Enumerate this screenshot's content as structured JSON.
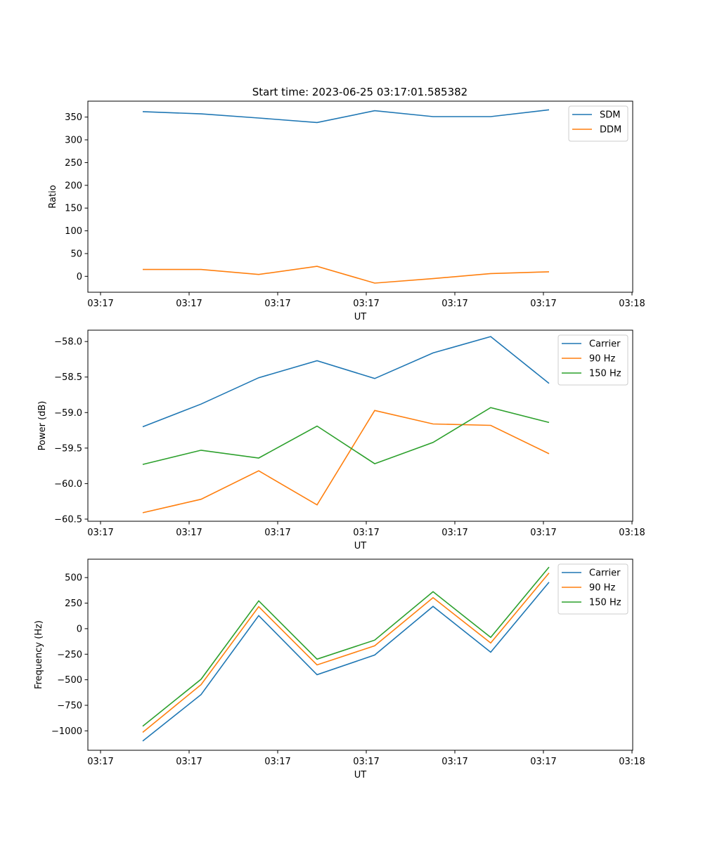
{
  "figure_title": "Start time: 2023-06-25 03:17:01.585382",
  "colors": {
    "blue": "#1f77b4",
    "orange": "#ff7f0e",
    "green": "#2ca02c"
  },
  "chart_data": [
    {
      "type": "line",
      "title": "Start time: 2023-06-25 03:17:01.585382",
      "xlabel": "UT",
      "ylabel": "Ratio",
      "x_tick_labels": [
        "03:17",
        "03:17",
        "03:17",
        "03:17",
        "03:17",
        "03:17",
        "03:18"
      ],
      "ylim": [
        -35,
        385
      ],
      "yticks": [
        0,
        50,
        100,
        150,
        200,
        250,
        300,
        350
      ],
      "ytick_labels": [
        "0",
        "50",
        "100",
        "150",
        "200",
        "250",
        "300",
        "350"
      ],
      "legend_position": "upper right",
      "series": [
        {
          "name": "SDM",
          "color": "#1f77b4",
          "values": [
            362,
            357,
            348,
            338,
            364,
            351,
            351,
            366
          ]
        },
        {
          "name": "DDM",
          "color": "#ff7f0e",
          "values": [
            15,
            15,
            4,
            22,
            -15,
            -5,
            6,
            10
          ]
        }
      ]
    },
    {
      "type": "line",
      "title": "",
      "xlabel": "UT",
      "ylabel": "Power (dB)",
      "x_tick_labels": [
        "03:17",
        "03:17",
        "03:17",
        "03:17",
        "03:17",
        "03:17",
        "03:18"
      ],
      "ylim": [
        -60.53,
        -57.84
      ],
      "yticks": [
        -60.5,
        -60.0,
        -59.5,
        -59.0,
        -58.5,
        -58.0
      ],
      "ytick_labels": [
        "−60.5",
        "−60.0",
        "−59.5",
        "−59.0",
        "−58.5",
        "−58.0"
      ],
      "legend_position": "upper right",
      "series": [
        {
          "name": "Carrier",
          "color": "#1f77b4",
          "values": [
            -59.2,
            -58.88,
            -58.51,
            -58.27,
            -58.52,
            -58.16,
            -57.93,
            -58.59
          ]
        },
        {
          "name": "90 Hz",
          "color": "#ff7f0e",
          "values": [
            -60.41,
            -60.22,
            -59.82,
            -60.3,
            -58.97,
            -59.16,
            -59.18,
            -59.58
          ]
        },
        {
          "name": "150 Hz",
          "color": "#2ca02c",
          "values": [
            -59.73,
            -59.53,
            -59.64,
            -59.19,
            -59.72,
            -59.42,
            -58.93,
            -59.14
          ]
        }
      ]
    },
    {
      "type": "line",
      "title": "",
      "xlabel": "UT",
      "ylabel": "Frequency (Hz)",
      "x_tick_labels": [
        "03:17",
        "03:17",
        "03:17",
        "03:17",
        "03:17",
        "03:17",
        "03:18"
      ],
      "ylim": [
        -1190,
        680
      ],
      "yticks": [
        -1000,
        -750,
        -500,
        -250,
        0,
        250,
        500
      ],
      "ytick_labels": [
        "−1000",
        "−750",
        "−500",
        "−250",
        "0",
        "250",
        "500"
      ],
      "legend_position": "upper right",
      "series": [
        {
          "name": "Carrier",
          "color": "#1f77b4",
          "values": [
            -1100,
            -645,
            128,
            -450,
            -258,
            218,
            -230,
            455
          ]
        },
        {
          "name": "90 Hz",
          "color": "#ff7f0e",
          "values": [
            -1015,
            -548,
            215,
            -355,
            -168,
            303,
            -140,
            545
          ]
        },
        {
          "name": "150 Hz",
          "color": "#2ca02c",
          "values": [
            -955,
            -495,
            272,
            -298,
            -112,
            362,
            -85,
            603
          ]
        }
      ]
    }
  ]
}
